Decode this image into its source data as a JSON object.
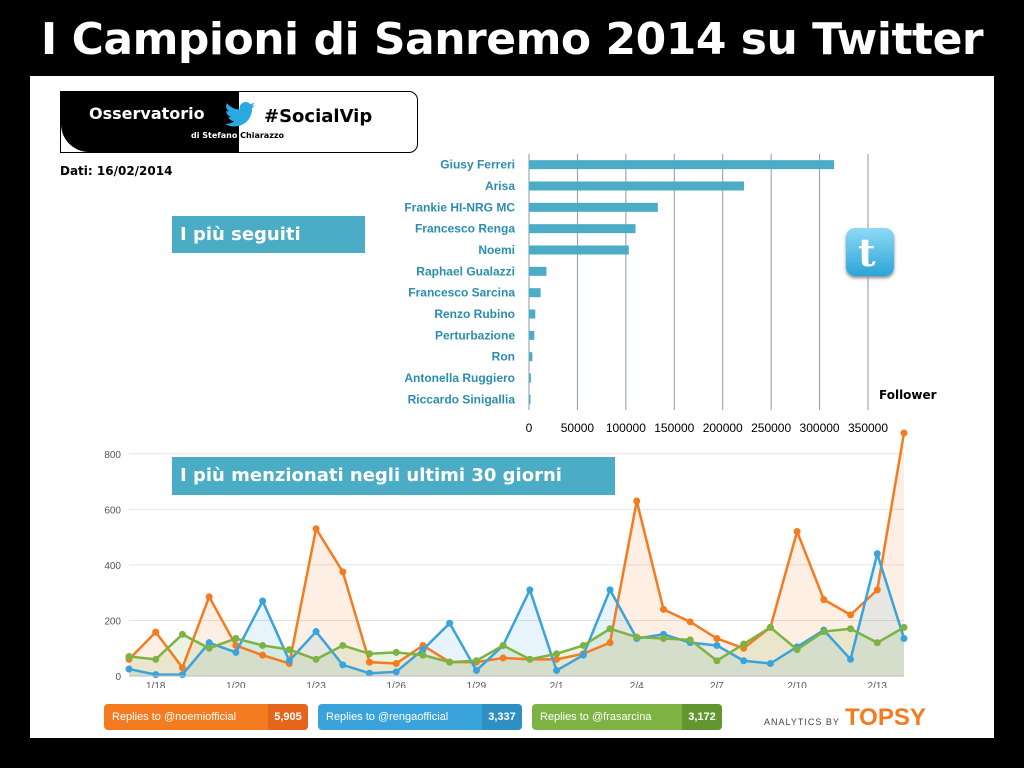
{
  "title": "I Campioni di Sanremo 2014 su Twitter",
  "logo": {
    "left": "Osservatorio",
    "sub_a": "di Stefano",
    "sub_b": "Chiarazzo",
    "tag": "#SocialVip",
    "icon": "twitter-bird-icon"
  },
  "date": "Dati: 16/02/2014",
  "banner_followed": "I più seguiti",
  "banner_mentioned": "I più menzionati negli ultimi 30 giorni",
  "twitter_button_icon": "twitter-logo-icon",
  "colors": {
    "bar": "#4BACC6",
    "orange": "#F47B20",
    "blue": "#3AA3DB",
    "green": "#7CB342"
  },
  "chart_data": [
    {
      "type": "bar",
      "orientation": "horizontal",
      "categories": [
        "Giusy Ferreri",
        "Arisa",
        "Frankie HI-NRG MC",
        "Francesco Renga",
        "Noemi",
        "Raphael Gualazzi",
        "Francesco Sarcina",
        "Renzo Rubino",
        "Perturbazione",
        "Ron",
        "Antonella Ruggiero",
        "Riccardo Sinigallia"
      ],
      "values": [
        315000,
        222000,
        133000,
        110000,
        103000,
        18000,
        12000,
        6500,
        5500,
        3500,
        2000,
        1500
      ],
      "xlabel": "Follower",
      "xticks": [
        "0",
        "50000",
        "100000",
        "150000",
        "200000",
        "250000",
        "300000",
        "350000"
      ],
      "xlim": [
        0,
        350000
      ],
      "grid": true
    },
    {
      "type": "line",
      "x_ticks": [
        "1/18",
        "1/20",
        "1/23",
        "1/26",
        "1/29",
        "2/1",
        "2/4",
        "2/7",
        "2/10",
        "2/13"
      ],
      "y_ticks": [
        "0",
        "200",
        "400",
        "600",
        "800"
      ],
      "ylim": [
        0,
        900
      ],
      "grid": true,
      "series": [
        {
          "name": "Replies to @noemiofficial",
          "total": "5,905",
          "color": "#F47B20",
          "values": [
            60,
            158,
            30,
            285,
            110,
            75,
            45,
            530,
            375,
            50,
            45,
            110,
            50,
            50,
            65,
            60,
            60,
            80,
            120,
            630,
            240,
            195,
            135,
            100,
            175,
            520,
            275,
            220,
            310,
            875
          ]
        },
        {
          "name": "Replies to @rengaofficial",
          "total": "3,337",
          "color": "#3AA3DB",
          "values": [
            25,
            5,
            5,
            120,
            85,
            270,
            55,
            160,
            40,
            10,
            15,
            95,
            190,
            20,
            110,
            310,
            20,
            75,
            310,
            135,
            150,
            120,
            110,
            55,
            45,
            105,
            165,
            60,
            440,
            135
          ]
        },
        {
          "name": "Replies to @frasarcina",
          "total": "3,172",
          "color": "#7CB342",
          "values": [
            70,
            60,
            150,
            100,
            135,
            110,
            95,
            60,
            110,
            80,
            85,
            75,
            50,
            55,
            110,
            60,
            80,
            110,
            170,
            140,
            135,
            130,
            55,
            115,
            175,
            95,
            160,
            170,
            120,
            175
          ]
        }
      ]
    }
  ],
  "topsy": {
    "small": "ANALYTICS BY",
    "brand": "TOPSY"
  }
}
